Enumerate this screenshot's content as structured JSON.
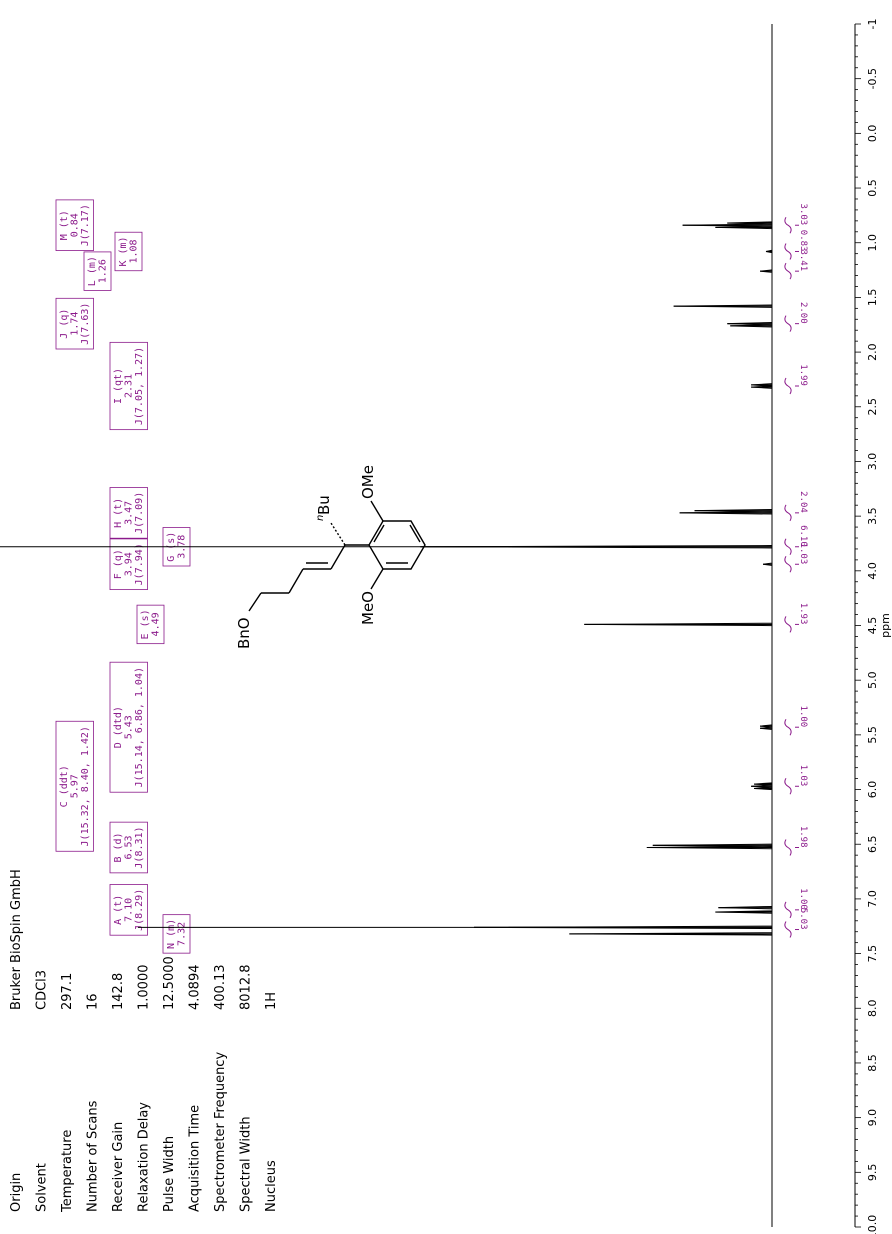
{
  "params": [
    {
      "label": "Origin",
      "value": "Bruker BioSpin GmbH"
    },
    {
      "label": "Solvent",
      "value": "CDCl3"
    },
    {
      "label": "Temperature",
      "value": "297.1"
    },
    {
      "label": "Number of Scans",
      "value": "16"
    },
    {
      "label": "Receiver Gain",
      "value": "142.8"
    },
    {
      "label": "Relaxation Delay",
      "value": "1.0000"
    },
    {
      "label": "Pulse Width",
      "value": "12.5000"
    },
    {
      "label": "Acquisition Time",
      "value": "4.0894"
    },
    {
      "label": "Spectrometer Frequency",
      "value": "400.13"
    },
    {
      "label": "Spectral Width",
      "value": "8012.8"
    },
    {
      "label": "Nucleus",
      "value": "1H"
    }
  ],
  "colors": {
    "annotation": "#8b1a8b",
    "spectrum": "#000000",
    "integral": "#8b1a8b"
  },
  "structure": {
    "labels": {
      "nbu_n": "n",
      "nbu": "Bu",
      "obn": "BnO",
      "ome_top": "OMe",
      "ome_bottom": "MeO"
    }
  },
  "chart_data": {
    "type": "line",
    "title": "",
    "xlabel": "ppm",
    "ylabel": "",
    "xlim": [
      10.0,
      -1.0
    ],
    "reversed_axis": true,
    "rotation": "rotated 90° counter-clockwise (ppm axis runs vertically on the right)",
    "ticks": [
      "10.0",
      "9.5",
      "9.0",
      "8.5",
      "8.0",
      "7.5",
      "7.0",
      "6.5",
      "6.0",
      "5.5",
      "5.0",
      "4.5",
      "4.0",
      "3.5",
      "3.0",
      "2.5",
      "2.0",
      "1.5",
      "1.0",
      "0.5",
      "0.0",
      "-0.5",
      "-1"
    ],
    "peaks": [
      {
        "ppm": 7.32,
        "height": 0.68
      },
      {
        "ppm": 7.26,
        "height": 1.0
      },
      {
        "ppm": 7.12,
        "height": 0.19
      },
      {
        "ppm": 7.08,
        "height": 0.18
      },
      {
        "ppm": 6.53,
        "height": 0.42
      },
      {
        "ppm": 6.51,
        "height": 0.4
      },
      {
        "ppm": 5.99,
        "height": 0.06
      },
      {
        "ppm": 5.97,
        "height": 0.07
      },
      {
        "ppm": 5.95,
        "height": 0.06
      },
      {
        "ppm": 5.44,
        "height": 0.04
      },
      {
        "ppm": 5.42,
        "height": 0.04
      },
      {
        "ppm": 4.49,
        "height": 0.63
      },
      {
        "ppm": 3.94,
        "height": 0.03
      },
      {
        "ppm": 3.78,
        "height": 1.18
      },
      {
        "ppm": 3.47,
        "height": 0.31
      },
      {
        "ppm": 3.45,
        "height": 0.26
      },
      {
        "ppm": 2.32,
        "height": 0.07
      },
      {
        "ppm": 2.3,
        "height": 0.07
      },
      {
        "ppm": 1.76,
        "height": 0.14
      },
      {
        "ppm": 1.74,
        "height": 0.15
      },
      {
        "ppm": 1.58,
        "height": 0.33
      },
      {
        "ppm": 1.26,
        "height": 0.04
      },
      {
        "ppm": 1.08,
        "height": 0.02
      },
      {
        "ppm": 0.86,
        "height": 0.19
      },
      {
        "ppm": 0.84,
        "height": 0.3
      },
      {
        "ppm": 0.82,
        "height": 0.15
      }
    ],
    "integrals": [
      {
        "ppm": 7.28,
        "value": "5.03"
      },
      {
        "ppm": 7.1,
        "value": "1.00"
      },
      {
        "ppm": 6.53,
        "value": "1.98"
      },
      {
        "ppm": 5.97,
        "value": "1.03"
      },
      {
        "ppm": 5.43,
        "value": "1.00"
      },
      {
        "ppm": 4.49,
        "value": "1.93"
      },
      {
        "ppm": 3.94,
        "value": "1.03"
      },
      {
        "ppm": 3.78,
        "value": "6.10"
      },
      {
        "ppm": 3.47,
        "value": "2.04"
      },
      {
        "ppm": 2.31,
        "value": "1.99"
      },
      {
        "ppm": 1.74,
        "value": "2.00"
      },
      {
        "ppm": 1.26,
        "value": "3.41"
      },
      {
        "ppm": 1.08,
        "value": "0.83"
      },
      {
        "ppm": 0.84,
        "value": "3.03"
      }
    ],
    "annotations": [
      {
        "ppm": 7.1,
        "lines": [
          "A (t)",
          "7.10",
          "J(8.29)"
        ]
      },
      {
        "ppm": 7.32,
        "lines": [
          "N (m)",
          "7.32"
        ]
      },
      {
        "ppm": 6.53,
        "lines": [
          "B (d)",
          "6.53",
          "J(8.31)"
        ]
      },
      {
        "ppm": 5.97,
        "lines": [
          "C (ddt)",
          "5.97",
          "J(15.32, 8.40, 1.42)"
        ]
      },
      {
        "ppm": 5.43,
        "lines": [
          "D (dtd)",
          "5.43",
          "J(15.14, 6.86, 1.04)"
        ]
      },
      {
        "ppm": 4.49,
        "lines": [
          "E (s)",
          "4.49"
        ]
      },
      {
        "ppm": 3.94,
        "lines": [
          "F (q)",
          "3.94",
          "J(7.94)"
        ]
      },
      {
        "ppm": 3.78,
        "lines": [
          "G (s)",
          "3.78"
        ]
      },
      {
        "ppm": 3.47,
        "lines": [
          "H (t)",
          "3.47",
          "J(7.09)"
        ]
      },
      {
        "ppm": 2.31,
        "lines": [
          "I (qt)",
          "2.31",
          "J(7.05, 1.27)"
        ]
      },
      {
        "ppm": 1.74,
        "lines": [
          "J (q)",
          "1.74",
          "J(7.63)"
        ]
      },
      {
        "ppm": 1.26,
        "lines": [
          "L (m)",
          "1.26"
        ]
      },
      {
        "ppm": 1.08,
        "lines": [
          "K (m)",
          "1.08"
        ]
      },
      {
        "ppm": 0.84,
        "lines": [
          "M (t)",
          "0.84",
          "J(7.17)"
        ]
      }
    ]
  }
}
